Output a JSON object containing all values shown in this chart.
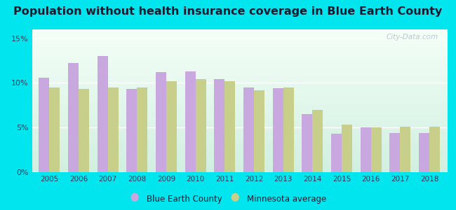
{
  "title": "Population without health insurance coverage in Blue Earth County",
  "years": [
    2005,
    2006,
    2007,
    2008,
    2009,
    2010,
    2011,
    2012,
    2013,
    2014,
    2015,
    2016,
    2017,
    2018
  ],
  "blue_earth": [
    10.6,
    12.2,
    13.0,
    9.3,
    11.2,
    11.3,
    10.4,
    9.5,
    9.4,
    6.5,
    4.3,
    5.0,
    4.4,
    4.4
  ],
  "mn_avg": [
    9.5,
    9.3,
    9.5,
    9.5,
    10.2,
    10.4,
    10.2,
    9.2,
    9.5,
    7.0,
    5.3,
    5.0,
    5.1,
    5.1
  ],
  "bar_color_county": "#c9a8e0",
  "bar_color_mn": "#c8cf8a",
  "background_plot_top": "#f0f8f0",
  "background_plot_bottom": "#d8f0e8",
  "background_outer": "#00e5ee",
  "title_color": "#1a1a2e",
  "tick_color": "#333355",
  "ylim": [
    0,
    16
  ],
  "yticks": [
    0,
    5,
    10,
    15
  ],
  "ytick_labels": [
    "0%",
    "5%",
    "10%",
    "15%"
  ],
  "legend_county": "Blue Earth County",
  "legend_mn": "Minnesota average",
  "title_fontsize": 11.5,
  "watermark": "City-Data.com",
  "bar_width": 0.36
}
